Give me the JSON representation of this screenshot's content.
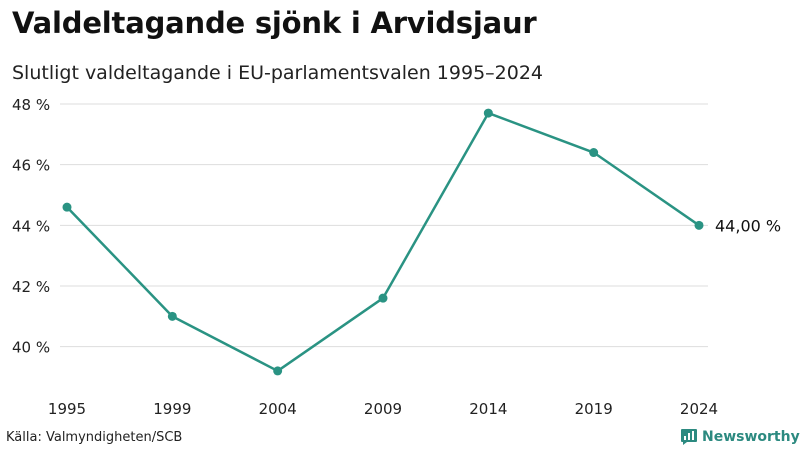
{
  "title": "Valdeltagande sjönk i Arvidsjaur",
  "subtitle": "Slutligt valdeltagande i EU-parlamentsvalen 1995–2024",
  "source": "Källa: Valmyndigheten/SCB",
  "brand": "Newsworthy",
  "colors": {
    "line": "#2a9383",
    "grid": "#dddddd",
    "brand": "#2c8a80"
  },
  "chart_data": {
    "type": "line",
    "title": "Valdeltagande sjönk i Arvidsjaur",
    "subtitle": "Slutligt valdeltagande i EU-parlamentsvalen 1995–2024",
    "xlabel": "",
    "ylabel": "",
    "ylim": [
      39,
      48
    ],
    "yticks": [
      40,
      42,
      44,
      46,
      48
    ],
    "ytick_labels": [
      "40 %",
      "42 %",
      "44 %",
      "46 %",
      "48 %"
    ],
    "categories": [
      "1995",
      "1999",
      "2004",
      "2009",
      "2014",
      "2019",
      "2024"
    ],
    "series": [
      {
        "name": "Valdeltagande",
        "values": [
          44.6,
          41.0,
          39.2,
          41.6,
          47.7,
          46.4,
          44.0
        ]
      }
    ],
    "end_label": "44,00 %",
    "grid": true
  }
}
